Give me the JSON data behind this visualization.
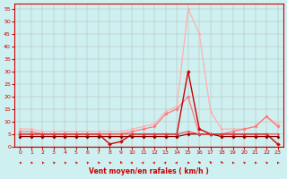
{
  "xlabel": "Vent moyen/en rafales ( km/h )",
  "xlim": [
    -0.5,
    23.5
  ],
  "ylim": [
    0,
    57
  ],
  "yticks": [
    0,
    5,
    10,
    15,
    20,
    25,
    30,
    35,
    40,
    45,
    50,
    55
  ],
  "xticks": [
    0,
    1,
    2,
    3,
    4,
    5,
    6,
    7,
    8,
    9,
    10,
    11,
    12,
    13,
    14,
    15,
    16,
    17,
    18,
    19,
    20,
    21,
    22,
    23
  ],
  "bg_color": "#cff0f0",
  "grid_color": "#b0b0b0",
  "axis_color": "#cc0000",
  "series": [
    {
      "x": [
        0,
        1,
        2,
        3,
        4,
        5,
        6,
        7,
        8,
        9,
        10,
        11,
        12,
        13,
        14,
        15,
        16,
        17,
        18,
        19,
        20,
        21,
        22,
        23
      ],
      "y": [
        7,
        7,
        6,
        6,
        6,
        6,
        6,
        6,
        6,
        6,
        7,
        8,
        9,
        14,
        16,
        55,
        45,
        14,
        7,
        7,
        7,
        8,
        12,
        9
      ],
      "color": "#ffb0b0",
      "lw": 0.9,
      "marker": "D",
      "ms": 1.8
    },
    {
      "x": [
        0,
        1,
        2,
        3,
        4,
        5,
        6,
        7,
        8,
        9,
        10,
        11,
        12,
        13,
        14,
        15,
        16,
        17,
        18,
        19,
        20,
        21,
        22,
        23
      ],
      "y": [
        6,
        6,
        5,
        5,
        5,
        5,
        5,
        5,
        5,
        5,
        6,
        7,
        8,
        13,
        15,
        20,
        5,
        5,
        5,
        6,
        7,
        8,
        12,
        8
      ],
      "color": "#ff7777",
      "lw": 0.9,
      "marker": "D",
      "ms": 1.8
    },
    {
      "x": [
        0,
        1,
        2,
        3,
        4,
        5,
        6,
        7,
        8,
        9,
        10,
        11,
        12,
        13,
        14,
        15,
        16,
        17,
        18,
        19,
        20,
        21,
        22,
        23
      ],
      "y": [
        5,
        5,
        5,
        5,
        5,
        5,
        5,
        5,
        1,
        2,
        5,
        5,
        5,
        5,
        5,
        30,
        7,
        5,
        5,
        5,
        5,
        5,
        5,
        1
      ],
      "color": "#cc0000",
      "lw": 1.0,
      "marker": "D",
      "ms": 2.0
    },
    {
      "x": [
        0,
        1,
        2,
        3,
        4,
        5,
        6,
        7,
        8,
        9,
        10,
        11,
        12,
        13,
        14,
        15,
        16,
        17,
        18,
        19,
        20,
        21,
        22,
        23
      ],
      "y": [
        4,
        4,
        4,
        4,
        4,
        4,
        4,
        4,
        4,
        4,
        4,
        4,
        4,
        4,
        4,
        5,
        5,
        5,
        4,
        4,
        4,
        4,
        4,
        4
      ],
      "color": "#880000",
      "lw": 0.9,
      "marker": "D",
      "ms": 1.8
    },
    {
      "x": [
        0,
        1,
        2,
        3,
        4,
        5,
        6,
        7,
        8,
        9,
        10,
        11,
        12,
        13,
        14,
        15,
        16,
        17,
        18,
        19,
        20,
        21,
        22,
        23
      ],
      "y": [
        5,
        5,
        5,
        5,
        5,
        5,
        5,
        5,
        5,
        5,
        5,
        5,
        5,
        5,
        5,
        6,
        5,
        5,
        5,
        5,
        5,
        5,
        5,
        5
      ],
      "color": "#ee4444",
      "lw": 0.8,
      "marker": "D",
      "ms": 1.5
    }
  ],
  "wind_arrows": {
    "x": [
      0,
      1,
      2,
      3,
      4,
      5,
      6,
      7,
      8,
      9,
      10,
      11,
      12,
      13,
      14,
      15,
      16,
      17,
      18,
      19,
      20,
      21,
      22,
      23
    ],
    "angles_deg": [
      225,
      225,
      225,
      225,
      225,
      225,
      225,
      225,
      225,
      270,
      45,
      45,
      45,
      45,
      45,
      315,
      270,
      270,
      270,
      225,
      225,
      225,
      315,
      315
    ]
  }
}
